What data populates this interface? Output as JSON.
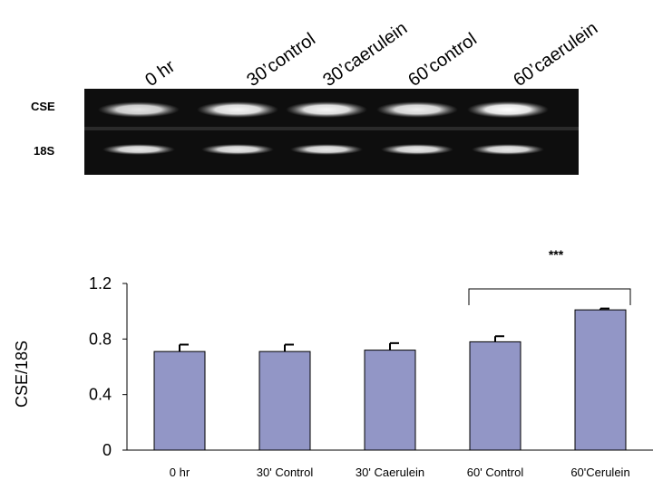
{
  "gel": {
    "lanes": [
      "0 hr",
      "30’control",
      "30’caerulein",
      "60’control",
      "60’caerulein"
    ],
    "rows": [
      "CSE",
      "18S"
    ],
    "band_intensity": {
      "CSE": [
        0.75,
        0.9,
        0.9,
        0.85,
        1.0
      ],
      "18S": [
        0.8,
        0.8,
        0.8,
        0.8,
        0.8
      ]
    }
  },
  "chart_data": {
    "type": "bar",
    "categories": [
      "0 hr",
      "30' Control",
      "30' Caerulein",
      "60' Control",
      "60'Cerulein"
    ],
    "values": [
      0.71,
      0.71,
      0.72,
      0.78,
      1.01
    ],
    "errors": [
      0.05,
      0.05,
      0.05,
      0.04,
      0.01
    ],
    "ylabel": "CSE/18S",
    "xlabel": "",
    "title": "",
    "ylim": [
      0,
      1.2
    ],
    "yticks": [
      "0",
      "0.4",
      "0.8",
      "1.2"
    ],
    "bar_color": "#9296c6",
    "grid": false,
    "significance": {
      "from": 3,
      "to": 4,
      "label": "***"
    }
  }
}
